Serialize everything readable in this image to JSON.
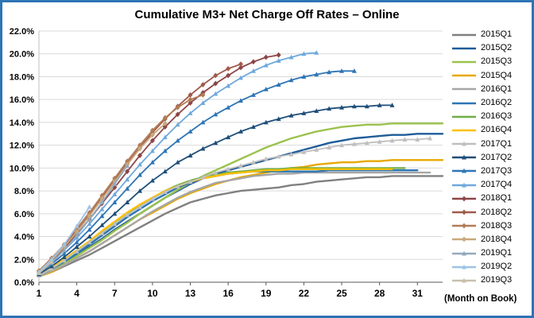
{
  "accent_border_color": "#2E74B5",
  "chart_data": {
    "type": "line",
    "title": "Cumulative M3+ Net Charge Off Rates – Online",
    "xlabel": "(Month on Book)",
    "grid": true,
    "legend_position": "right",
    "x_axis": {
      "min": 1,
      "max": 33,
      "tick_values": [
        1,
        4,
        7,
        10,
        13,
        16,
        19,
        22,
        25,
        28,
        31
      ]
    },
    "y_axis": {
      "min": 0,
      "max": 22,
      "tick_step": 2,
      "tick_labels": [
        "0.0%",
        "2.0%",
        "4.0%",
        "6.0%",
        "8.0%",
        "10.0%",
        "12.0%",
        "14.0%",
        "16.0%",
        "18.0%",
        "20.0%",
        "22.0%"
      ]
    },
    "start_month": 1,
    "series": [
      {
        "name": "2015Q1",
        "color": "#808080",
        "marker": "none",
        "values": [
          0.5,
          0.9,
          1.4,
          1.9,
          2.4,
          3.0,
          3.6,
          4.2,
          4.8,
          5.4,
          6.0,
          6.5,
          7.0,
          7.3,
          7.6,
          7.8,
          8.0,
          8.1,
          8.2,
          8.3,
          8.5,
          8.6,
          8.8,
          8.9,
          9.0,
          9.1,
          9.2,
          9.2,
          9.3,
          9.3,
          9.3,
          9.3,
          9.3
        ]
      },
      {
        "name": "2015Q2",
        "color": "#1F5C99",
        "marker": "none",
        "values": [
          0.6,
          1.1,
          1.7,
          2.4,
          3.1,
          3.8,
          4.6,
          5.3,
          6.0,
          6.7,
          7.4,
          8.0,
          8.6,
          9.1,
          9.5,
          9.8,
          10.1,
          10.4,
          10.7,
          11.0,
          11.3,
          11.6,
          11.9,
          12.2,
          12.4,
          12.6,
          12.7,
          12.8,
          12.9,
          12.9,
          13.0,
          13.0,
          13.0
        ]
      },
      {
        "name": "2015Q3",
        "color": "#9BC24D",
        "marker": "none",
        "values": [
          0.5,
          1.0,
          1.6,
          2.3,
          3.0,
          3.7,
          4.5,
          5.2,
          6.0,
          6.7,
          7.4,
          8.1,
          8.7,
          9.3,
          9.8,
          10.3,
          10.8,
          11.3,
          11.8,
          12.2,
          12.6,
          12.9,
          13.2,
          13.4,
          13.6,
          13.7,
          13.8,
          13.8,
          13.9,
          13.9,
          13.9,
          13.9,
          13.9
        ]
      },
      {
        "name": "2015Q4",
        "color": "#E8A800",
        "marker": "none",
        "values": [
          0.5,
          0.9,
          1.5,
          2.1,
          2.7,
          3.4,
          4.1,
          4.8,
          5.5,
          6.1,
          6.7,
          7.3,
          7.8,
          8.2,
          8.6,
          8.9,
          9.2,
          9.4,
          9.6,
          9.8,
          10.0,
          10.1,
          10.3,
          10.4,
          10.5,
          10.5,
          10.6,
          10.6,
          10.7,
          10.7,
          10.7,
          10.7,
          10.7
        ]
      },
      {
        "name": "2016Q1",
        "color": "#A6A6A6",
        "marker": "none",
        "values": [
          0.5,
          1.0,
          1.5,
          2.1,
          2.7,
          3.4,
          4.1,
          4.8,
          5.5,
          6.2,
          6.8,
          7.4,
          7.9,
          8.3,
          8.7,
          8.9,
          9.1,
          9.3,
          9.4,
          9.5,
          9.5,
          9.6,
          9.6,
          9.6,
          9.6,
          9.6,
          9.6,
          9.6,
          9.6,
          9.6,
          9.6,
          9.6
        ]
      },
      {
        "name": "2016Q2",
        "color": "#2E75B6",
        "marker": "none",
        "values": [
          0.6,
          1.2,
          1.8,
          2.5,
          3.3,
          4.1,
          4.9,
          5.7,
          6.4,
          7.1,
          7.7,
          8.3,
          8.7,
          9.1,
          9.3,
          9.5,
          9.6,
          9.7,
          9.7,
          9.7,
          9.7,
          9.7,
          9.7,
          9.8,
          9.8,
          9.8,
          9.8,
          9.8,
          9.8,
          9.8,
          9.8
        ]
      },
      {
        "name": "2016Q3",
        "color": "#70AD47",
        "marker": "none",
        "values": [
          0.6,
          1.2,
          1.9,
          2.7,
          3.5,
          4.3,
          5.1,
          5.9,
          6.7,
          7.4,
          8.0,
          8.5,
          8.9,
          9.2,
          9.4,
          9.6,
          9.7,
          9.8,
          9.9,
          9.9,
          10.0,
          10.0,
          10.0,
          10.0,
          10.0,
          10.0,
          10.0,
          10.0,
          10.0,
          10.0
        ]
      },
      {
        "name": "2016Q4",
        "color": "#FFC000",
        "marker": "none",
        "values": [
          0.7,
          1.3,
          2.0,
          2.8,
          3.6,
          4.5,
          5.3,
          6.1,
          6.8,
          7.4,
          8.0,
          8.4,
          8.8,
          9.1,
          9.3,
          9.5,
          9.6,
          9.7,
          9.8,
          9.8,
          9.9,
          9.9,
          9.9,
          9.9,
          9.9,
          9.9,
          9.9,
          9.9,
          9.9
        ]
      },
      {
        "name": "2017Q1",
        "color": "#BFBFBF",
        "marker": "triangle",
        "values": [
          0.6,
          1.2,
          1.9,
          2.7,
          3.5,
          4.3,
          5.1,
          5.9,
          6.6,
          7.3,
          7.9,
          8.4,
          8.8,
          9.2,
          9.6,
          9.9,
          10.2,
          10.5,
          10.8,
          11.0,
          11.2,
          11.4,
          11.6,
          11.8,
          12.0,
          12.1,
          12.2,
          12.3,
          12.4,
          12.5,
          12.5,
          12.6
        ]
      },
      {
        "name": "2017Q2",
        "color": "#1F4E79",
        "marker": "triangle",
        "values": [
          0.7,
          1.4,
          2.2,
          3.1,
          4.0,
          5.0,
          6.0,
          7.0,
          8.0,
          8.9,
          9.7,
          10.5,
          11.1,
          11.7,
          12.2,
          12.7,
          13.2,
          13.6,
          14.0,
          14.3,
          14.6,
          14.8,
          15.0,
          15.2,
          15.3,
          15.4,
          15.4,
          15.5,
          15.5
        ]
      },
      {
        "name": "2017Q3",
        "color": "#2E75B6",
        "marker": "triangle",
        "values": [
          0.8,
          1.6,
          2.5,
          3.5,
          4.6,
          5.8,
          7.0,
          8.2,
          9.4,
          10.5,
          11.5,
          12.4,
          13.2,
          14.0,
          14.7,
          15.3,
          15.9,
          16.4,
          16.9,
          17.3,
          17.7,
          18.0,
          18.2,
          18.4,
          18.5,
          18.5
        ]
      },
      {
        "name": "2017Q4",
        "color": "#6FA8DC",
        "marker": "triangle",
        "values": [
          0.9,
          1.8,
          2.8,
          3.9,
          5.1,
          6.4,
          7.7,
          9.0,
          10.3,
          11.5,
          12.7,
          13.8,
          14.8,
          15.7,
          16.5,
          17.2,
          17.9,
          18.5,
          19.0,
          19.4,
          19.7,
          20.0,
          20.1
        ]
      },
      {
        "name": "2018Q1",
        "color": "#8C4646",
        "marker": "diamond",
        "values": [
          0.9,
          1.9,
          3.0,
          4.2,
          5.5,
          6.9,
          8.3,
          9.7,
          11.1,
          12.4,
          13.6,
          14.7,
          15.7,
          16.6,
          17.4,
          18.1,
          18.8,
          19.3,
          19.7,
          19.9
        ]
      },
      {
        "name": "2018Q2",
        "color": "#A05A4B",
        "marker": "diamond",
        "values": [
          1.0,
          2.0,
          3.2,
          4.5,
          5.9,
          7.4,
          8.9,
          10.4,
          11.8,
          13.1,
          14.3,
          15.4,
          16.4,
          17.3,
          18.1,
          18.7,
          19.1
        ]
      },
      {
        "name": "2018Q3",
        "color": "#B27C57",
        "marker": "diamond",
        "values": [
          1.0,
          2.1,
          3.3,
          4.7,
          6.1,
          7.6,
          9.1,
          10.6,
          12.0,
          13.3,
          14.4,
          15.3,
          16.0,
          16.4
        ]
      },
      {
        "name": "2018Q4",
        "color": "#C9A87C",
        "marker": "diamond",
        "values": [
          0.9,
          1.9,
          3.1,
          4.4,
          5.8,
          7.3,
          8.8,
          10.3,
          11.7,
          12.9,
          13.9
        ]
      },
      {
        "name": "2019Q1",
        "color": "#93A9BF",
        "marker": "triangle",
        "values": [
          0.8,
          1.7,
          2.8,
          4.1,
          5.5,
          7.0,
          8.6,
          10.2
        ]
      },
      {
        "name": "2019Q2",
        "color": "#9DC3E6",
        "marker": "triangle",
        "values": [
          0.9,
          2.0,
          3.3,
          4.9,
          6.6
        ]
      },
      {
        "name": "2019Q3",
        "color": "#C8BFAC",
        "marker": "triangle",
        "values": [
          0.8,
          1.8
        ]
      }
    ]
  }
}
